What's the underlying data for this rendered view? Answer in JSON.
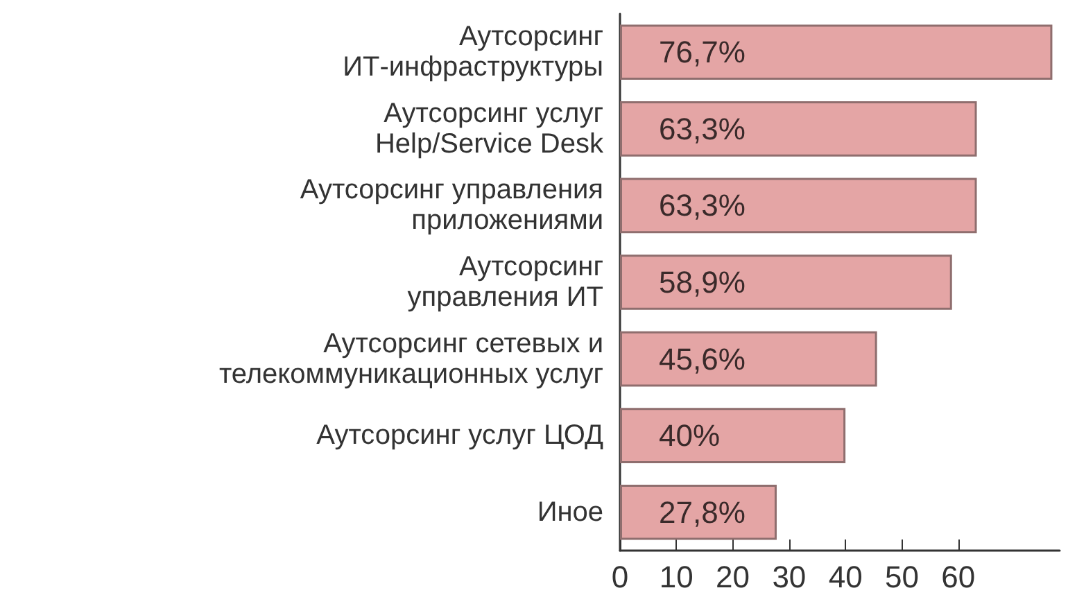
{
  "chart_data": {
    "type": "bar",
    "orientation": "horizontal",
    "categories": [
      "Аутсорсинг\nИТ-инфраструктуры",
      "Аутсорсинг услуг\nHelp/Service Desk",
      "Аутсорсинг управления\nприложениями",
      "Аутсорсинг\nуправления ИТ",
      "Аутсорсинг сетевых и\nтелекоммуникационных услуг",
      "Аутсорсинг услуг ЦОД",
      "Иное"
    ],
    "values": [
      76.7,
      63.3,
      63.3,
      58.9,
      45.6,
      40,
      27.8
    ],
    "value_labels": [
      "76,7%",
      "63,3%",
      "63,3%",
      "58,9%",
      "45,6%",
      "40%",
      "27,8%"
    ],
    "color": "#e4a5a5",
    "xlim": [
      0,
      78
    ],
    "xticks": [
      0,
      10,
      20,
      30,
      40,
      50,
      60
    ],
    "grid": false
  }
}
